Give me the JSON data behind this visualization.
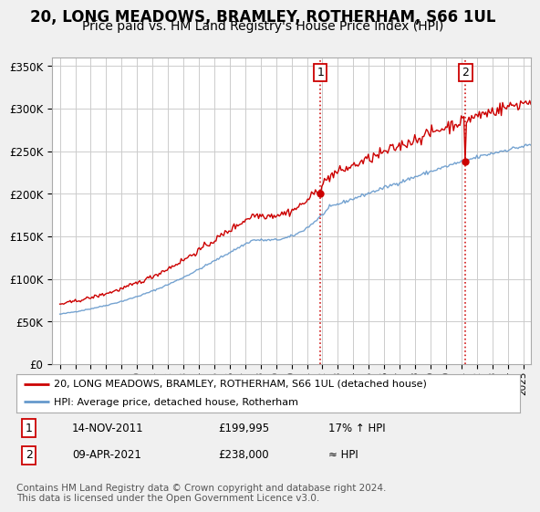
{
  "title": "20, LONG MEADOWS, BRAMLEY, ROTHERHAM, S66 1UL",
  "subtitle": "Price paid vs. HM Land Registry's House Price Index (HPI)",
  "title_fontsize": 12,
  "subtitle_fontsize": 10,
  "ylabel_ticks": [
    "£0",
    "£50K",
    "£100K",
    "£150K",
    "£200K",
    "£250K",
    "£300K",
    "£350K"
  ],
  "ytick_values": [
    0,
    50000,
    100000,
    150000,
    200000,
    250000,
    300000,
    350000
  ],
  "ylim": [
    0,
    360000
  ],
  "xlim_start": 1994.5,
  "xlim_end": 2025.5,
  "xtick_years": [
    1995,
    1996,
    1997,
    1998,
    1999,
    2000,
    2001,
    2002,
    2003,
    2004,
    2005,
    2006,
    2007,
    2008,
    2009,
    2010,
    2011,
    2012,
    2013,
    2014,
    2015,
    2016,
    2017,
    2018,
    2019,
    2020,
    2021,
    2022,
    2023,
    2024,
    2025
  ],
  "hpi_line_color": "#6699cc",
  "price_line_color": "#cc0000",
  "marker1_x": 2011.87,
  "marker1_y": 199995,
  "marker2_x": 2021.27,
  "marker2_y": 238000,
  "vline1_x": 2011.87,
  "vline2_x": 2021.27,
  "vline_color": "#cc0000",
  "grid_color": "#cccccc",
  "bg_color": "#f0f0f0",
  "plot_bg_color": "#ffffff",
  "legend_label1": "20, LONG MEADOWS, BRAMLEY, ROTHERHAM, S66 1UL (detached house)",
  "legend_label2": "HPI: Average price, detached house, Rotherham",
  "table_row1": [
    "1",
    "14-NOV-2011",
    "£199,995",
    "17% ↑ HPI"
  ],
  "table_row2": [
    "2",
    "09-APR-2021",
    "£238,000",
    "≈ HPI"
  ],
  "footer_text": "Contains HM Land Registry data © Crown copyright and database right 2024.\nThis data is licensed under the Open Government Licence v3.0.",
  "footer_fontsize": 7.5
}
